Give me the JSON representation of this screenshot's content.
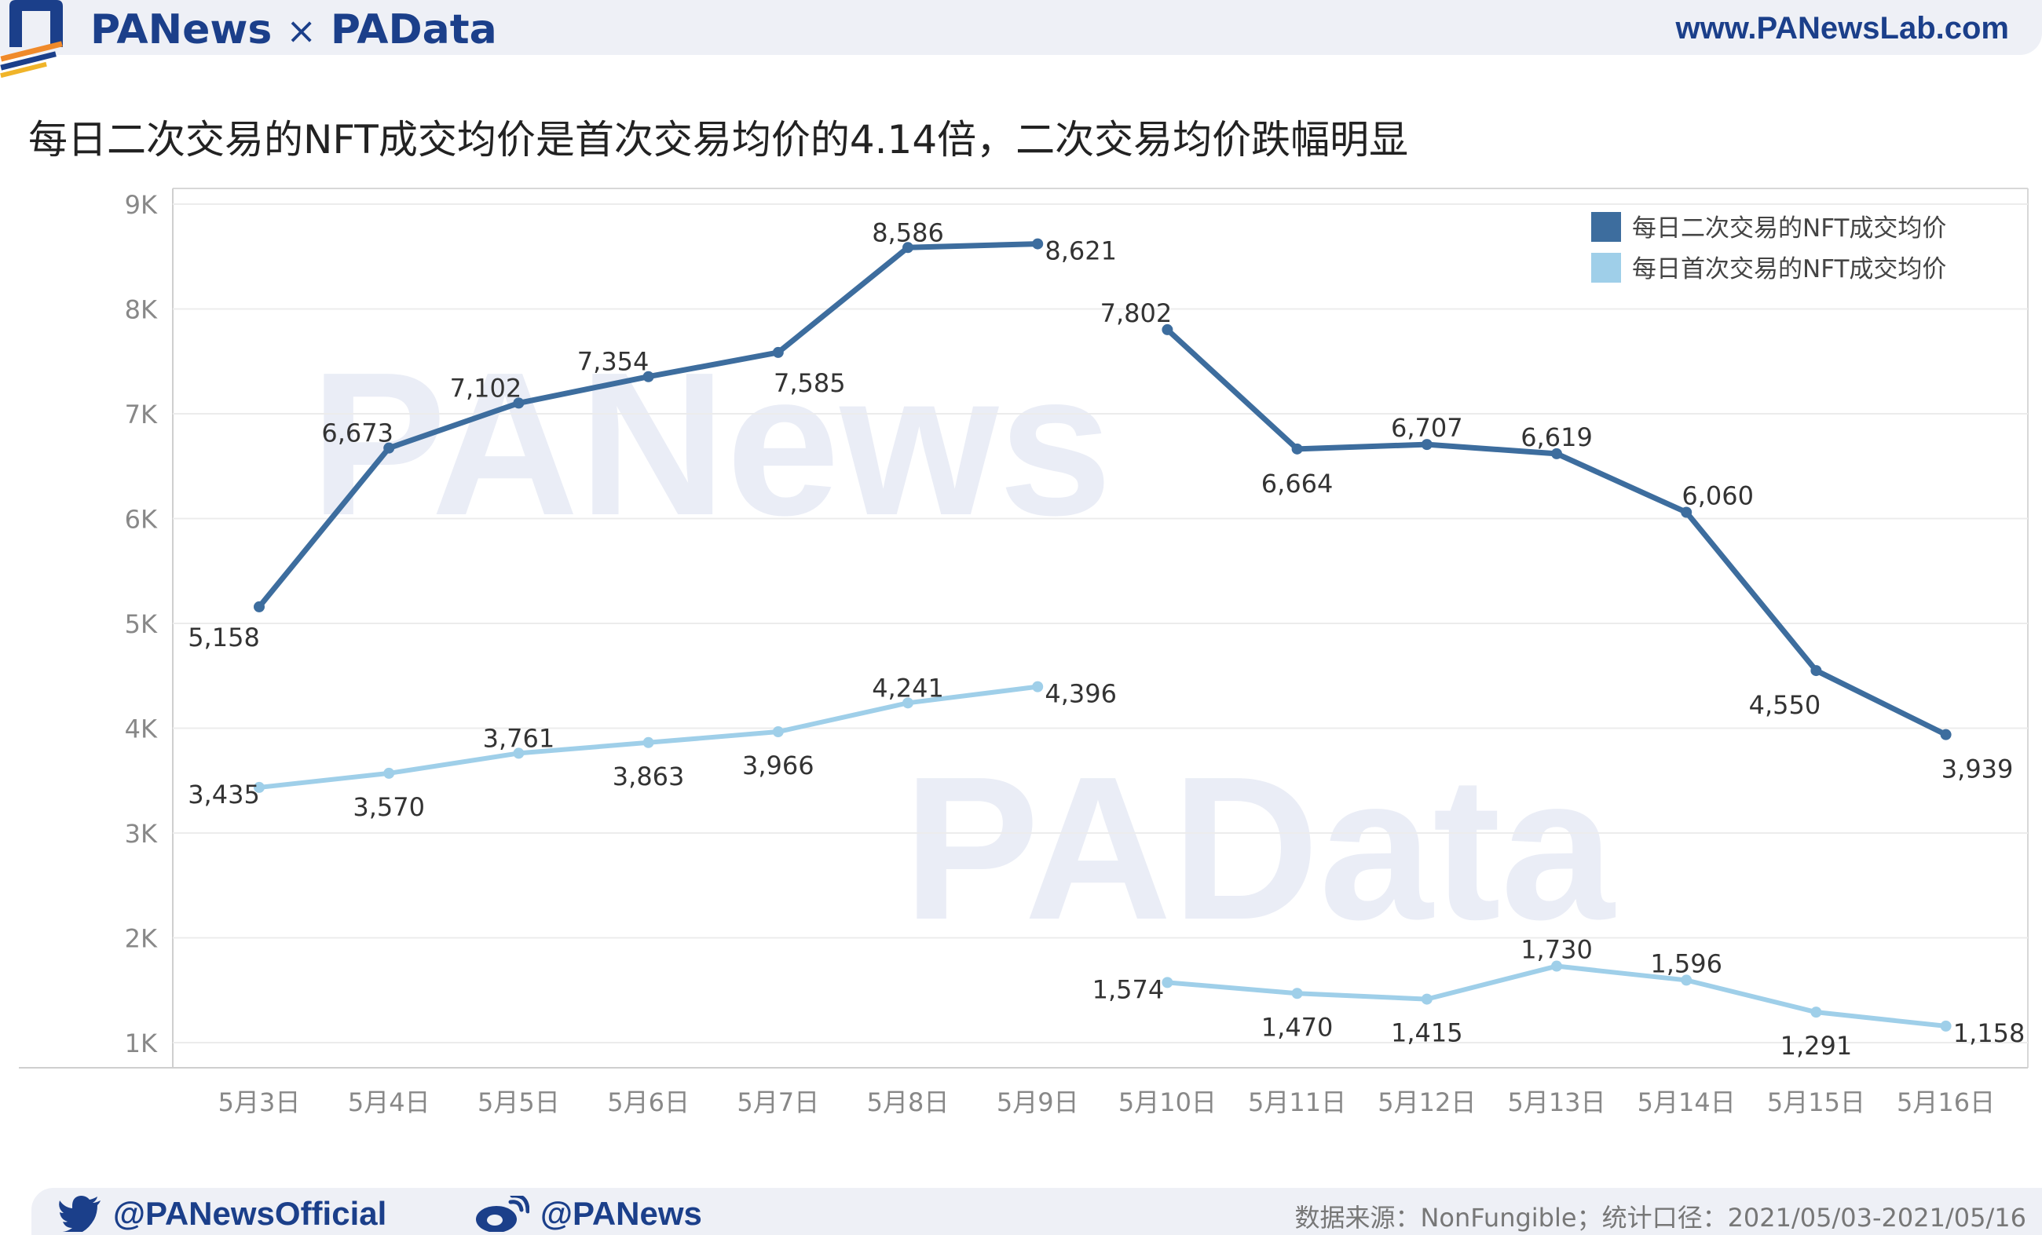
{
  "header": {
    "brand_left": "PANews",
    "brand_times": "×",
    "brand_right": "PAData",
    "site_url": "www.PANewsLab.com"
  },
  "title": "每日二次交易的NFT成交均价是首次交易均价的4.14倍，二次交易均价跌幅明显",
  "watermarks": [
    "PANews",
    "PAData"
  ],
  "footer": {
    "twitter": "@PANewsOfficial",
    "weibo": "@PANews",
    "source": "数据来源：NonFungible；统计口径：2021/05/03-2021/05/16"
  },
  "colors": {
    "secondary_series": "#3d6d9e",
    "primary_series": "#9fcfe9",
    "brand": "#1b3f8a"
  },
  "chart_data": {
    "type": "line",
    "categories": [
      "5月3日",
      "5月4日",
      "5月5日",
      "5月6日",
      "5月7日",
      "5月8日",
      "5月9日",
      "5月10日",
      "5月11日",
      "5月12日",
      "5月13日",
      "5月14日",
      "5月15日",
      "5月16日"
    ],
    "ylim": [
      1000,
      9000
    ],
    "yticks": [
      {
        "value": 1000,
        "label": "1K"
      },
      {
        "value": 2000,
        "label": "2K"
      },
      {
        "value": 3000,
        "label": "3K"
      },
      {
        "value": 4000,
        "label": "4K"
      },
      {
        "value": 5000,
        "label": "5K"
      },
      {
        "value": 6000,
        "label": "6K"
      },
      {
        "value": 7000,
        "label": "7K"
      },
      {
        "value": 8000,
        "label": "8K"
      },
      {
        "value": 9000,
        "label": "9K"
      }
    ],
    "grid": true,
    "legend_position": "top-right",
    "note": "line breaks between 5月9日 and 5月10日",
    "series": [
      {
        "name": "每日二次交易的NFT成交均价",
        "color": "#3d6d9e",
        "values": [
          5158,
          6673,
          7102,
          7354,
          7585,
          8586,
          8621,
          7802,
          6664,
          6707,
          6619,
          6060,
          4550,
          3939
        ],
        "labels": [
          "5,158",
          "6,673",
          "7,102",
          "7,354",
          "7,585",
          "8,586",
          "8,621",
          "7,802",
          "6,664",
          "6,707",
          "6,619",
          "6,060",
          "4,550",
          "3,939"
        ]
      },
      {
        "name": "每日首次交易的NFT成交均价",
        "color": "#9fcfe9",
        "values": [
          3435,
          3570,
          3761,
          3863,
          3966,
          4241,
          4396,
          1574,
          1470,
          1415,
          1730,
          1596,
          1291,
          1158
        ],
        "labels": [
          "3,435",
          "3,570",
          "3,761",
          "3,863",
          "3,966",
          "4,241",
          "4,396",
          "1,574",
          "1,470",
          "1,415",
          "1,730",
          "1,596",
          "1,291",
          "1,158"
        ]
      }
    ]
  }
}
